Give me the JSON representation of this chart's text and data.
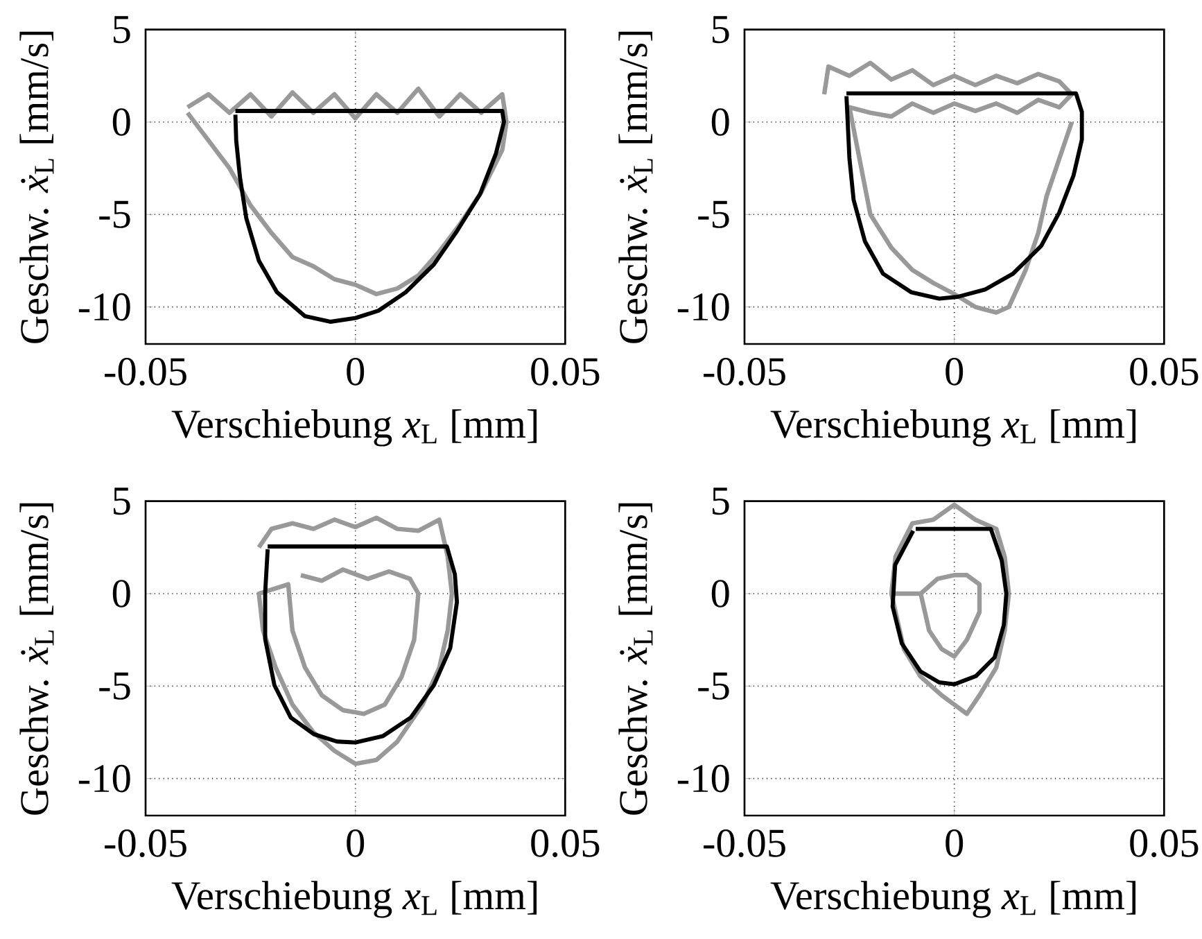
{
  "chart_data": [
    {
      "type": "line",
      "xlabel": "Verschiebung *x*$_{L}$  [mm]",
      "ylabel": "Geschw. *ẋ*$_{L}$ [mm/s]",
      "xlim": [
        -0.05,
        0.05
      ],
      "ylim": [
        -12,
        5
      ],
      "xticks": [
        -0.05,
        0,
        0.05
      ],
      "yticks": [
        -10,
        -5,
        0,
        5
      ],
      "grid": true,
      "series": [
        {
          "color": "#999999",
          "x": [
            -0.04,
            -0.035,
            -0.03,
            -0.025,
            -0.02,
            -0.015,
            -0.01,
            -0.005,
            0,
            0.005,
            0.01,
            0.015,
            0.02,
            0.025,
            0.03,
            0.035,
            0.036,
            0.035,
            0.03,
            0.025,
            0.02,
            0.015,
            0.01,
            0.005,
            0,
            -0.005,
            -0.01,
            -0.015,
            -0.02,
            -0.025,
            -0.03,
            -0.035,
            -0.04
          ],
          "values": [
            0.5,
            -1,
            -2.5,
            -4.5,
            -6,
            -7.3,
            -7.8,
            -8.5,
            -8.8,
            -9.3,
            -9,
            -8.3,
            -7,
            -5.5,
            -3.8,
            -1.5,
            0,
            1.5,
            0.5,
            1.5,
            0.3,
            1.8,
            0.5,
            1.5,
            0.2,
            1.5,
            0.5,
            1.6,
            0.3,
            1.5,
            0.5,
            1.5,
            0.8
          ]
        },
        {
          "color": "#000000",
          "x": [
            -0.0286,
            0.035,
            0.0354,
            0.0335,
            0.0297,
            0.0242,
            0.0187,
            0.012,
            0.0055,
            0,
            -0.006,
            -0.012,
            -0.0187,
            -0.023,
            -0.026,
            -0.0275,
            -0.0284,
            -0.0286
          ],
          "values": [
            0.6,
            0.6,
            0,
            -1.7,
            -3.9,
            -5.9,
            -7.7,
            -9.2,
            -10.2,
            -10.6,
            -10.8,
            -10.5,
            -9.2,
            -7.5,
            -5.2,
            -3,
            -1,
            0.4
          ]
        }
      ]
    },
    {
      "type": "line",
      "xlabel": "Verschiebung *x*$_{L}$  [mm]",
      "ylabel": "Geschw. *ẋ*$_{L}$ [mm/s]",
      "xlim": [
        -0.05,
        0.05
      ],
      "ylim": [
        -12,
        5
      ],
      "xticks": [
        -0.05,
        0,
        0.05
      ],
      "yticks": [
        -10,
        -5,
        0,
        5
      ],
      "grid": true,
      "series": [
        {
          "color": "#999999",
          "x": [
            -0.031,
            -0.03,
            -0.025,
            -0.02,
            -0.015,
            -0.01,
            -0.005,
            0,
            0.005,
            0.01,
            0.015,
            0.02,
            0.025,
            0.028,
            0.025,
            0.02,
            0.015,
            0.01,
            0.005,
            0,
            -0.005,
            -0.01,
            -0.015,
            -0.02,
            -0.025,
            -0.02,
            -0.015,
            -0.01,
            -0.005,
            0,
            0.005,
            0.01,
            0.013,
            0.017,
            0.02,
            0.022,
            0.025,
            0.028
          ],
          "values": [
            1.5,
            3,
            2.5,
            3.2,
            2.3,
            2.8,
            2,
            2.5,
            2,
            2.5,
            2.1,
            2.6,
            2.2,
            1.5,
            0.8,
            1.2,
            0.5,
            1,
            0.6,
            1,
            0.5,
            1,
            0.3,
            0.5,
            0.8,
            -5,
            -6.8,
            -8,
            -8.7,
            -9.3,
            -10,
            -10.3,
            -10,
            -8,
            -6,
            -4,
            -2,
            0
          ]
        },
        {
          "color": "#000000",
          "x": [
            -0.0257,
            0.029,
            0.0304,
            0.0304,
            0.0284,
            0.025,
            0.0207,
            0.014,
            0.0074,
            0.0008,
            -0.0036,
            -0.0103,
            -0.017,
            -0.0213,
            -0.024,
            -0.025,
            -0.0257
          ],
          "values": [
            1.55,
            1.55,
            0.55,
            -0.95,
            -2.9,
            -4.9,
            -6.7,
            -8.2,
            -9.05,
            -9.45,
            -9.55,
            -9.2,
            -8.2,
            -6.45,
            -4.2,
            -1.95,
            1.4
          ]
        }
      ]
    },
    {
      "type": "line",
      "xlabel": "Verschiebung *x*$_{L}$  [mm]",
      "ylabel": "Geschw. *ẋ*$_{L}$ [mm/s]",
      "xlim": [
        -0.05,
        0.05
      ],
      "ylim": [
        -12,
        5
      ],
      "xticks": [
        -0.05,
        0,
        0.05
      ],
      "yticks": [
        -10,
        -5,
        0,
        5
      ],
      "grid": true,
      "series": [
        {
          "color": "#999999",
          "x": [
            -0.023,
            -0.02,
            -0.015,
            -0.01,
            -0.005,
            0,
            0.005,
            0.01,
            0.015,
            0.02,
            0.022,
            0.023,
            0.022,
            0.02,
            0.016,
            0.01,
            0.005,
            0,
            -0.005,
            -0.01,
            -0.015,
            -0.019,
            -0.022,
            -0.023,
            -0.016,
            -0.015,
            -0.012,
            -0.008,
            -0.003,
            0.002,
            0.007,
            0.011,
            0.014,
            0.015,
            0.013,
            0.008,
            0.003,
            -0.003,
            -0.008,
            -0.013
          ],
          "values": [
            2.5,
            3.5,
            3.8,
            3.5,
            4,
            3.6,
            4.1,
            3.5,
            3.4,
            4,
            2,
            0,
            -2,
            -4,
            -6,
            -8,
            -9,
            -9.2,
            -8.5,
            -7.5,
            -6,
            -4,
            -2,
            0,
            0.5,
            -2,
            -4,
            -5.5,
            -6.3,
            -6.5,
            -6,
            -4.5,
            -2.5,
            0,
            0.8,
            1.2,
            0.8,
            1.3,
            0.7,
            1
          ]
        },
        {
          "color": "#000000",
          "x": [
            -0.0209,
            0.0218,
            0.0237,
            0.0242,
            0.0226,
            0.0187,
            0.0132,
            0.0066,
            0,
            -0.0044,
            -0.0099,
            -0.0154,
            -0.0193,
            -0.0215,
            -0.0215,
            -0.0209
          ],
          "values": [
            2.55,
            2.55,
            1.05,
            -0.45,
            -2.95,
            -4.95,
            -6.7,
            -7.7,
            -8.05,
            -8,
            -7.6,
            -6.7,
            -4.95,
            -2.45,
            0.05,
            2.4
          ]
        }
      ]
    },
    {
      "type": "line",
      "xlabel": "Verschiebung *x*$_{L}$  [mm]",
      "ylabel": "Geschw. *ẋ*$_{L}$ [mm/s]",
      "xlim": [
        -0.05,
        0.05
      ],
      "ylim": [
        -12,
        5
      ],
      "xticks": [
        -0.05,
        0,
        0.05
      ],
      "yticks": [
        -10,
        -5,
        0,
        5
      ],
      "grid": true,
      "series": [
        {
          "color": "#999999",
          "x": [
            -0.015,
            -0.014,
            -0.01,
            -0.005,
            0,
            0.005,
            0.01,
            0.012,
            0.013,
            0.012,
            0.01,
            0.006,
            0.003,
            0,
            -0.003,
            -0.008,
            -0.012,
            -0.015,
            -0.008,
            -0.006,
            -0.003,
            0,
            0.003,
            0.006,
            0.006,
            0.003,
            0,
            -0.004,
            -0.008
          ],
          "values": [
            0,
            2,
            3.8,
            4,
            4.8,
            4,
            3.5,
            2,
            0,
            -2,
            -4,
            -5.5,
            -6.5,
            -6,
            -5.5,
            -4.5,
            -3,
            0,
            0,
            -2,
            -3,
            -3.4,
            -2.5,
            -1,
            0.5,
            1,
            1,
            0.8,
            0
          ]
        },
        {
          "color": "#000000",
          "x": [
            -0.0092,
            0.0087,
            0.0113,
            0.0124,
            0.0118,
            0.0096,
            0.0052,
            0,
            -0.0036,
            -0.0081,
            -0.0125,
            -0.0147,
            -0.0141,
            -0.0098
          ],
          "values": [
            3.5,
            3.5,
            1.8,
            0,
            -1.7,
            -3.45,
            -4.45,
            -4.9,
            -4.8,
            -4.2,
            -2.7,
            -0.7,
            1.55,
            3.4
          ]
        }
      ]
    }
  ]
}
